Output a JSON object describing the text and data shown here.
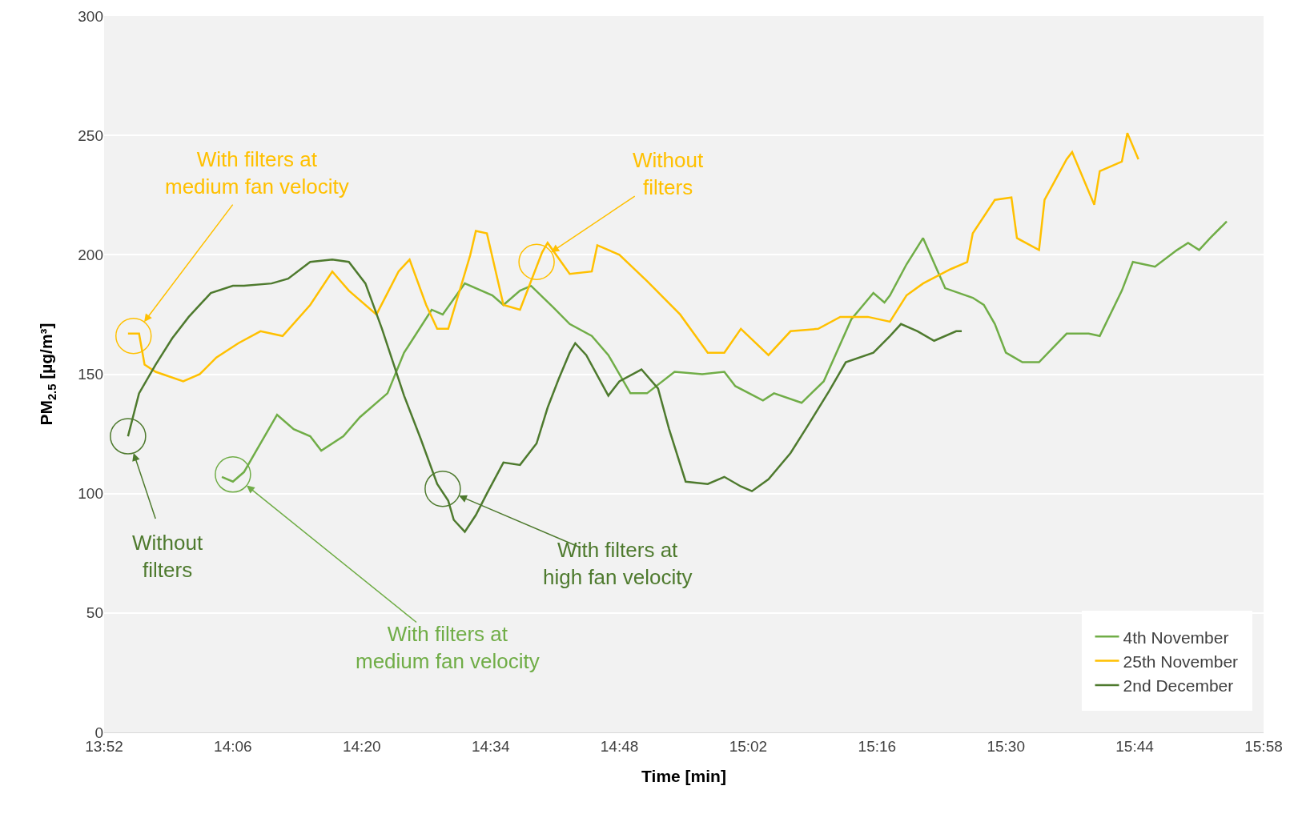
{
  "chart_data": {
    "type": "line",
    "xlabel": "Time [min]",
    "ylabel": "PM$_{2.5}$ [µg/m³]",
    "xlim": [
      13.8667,
      15.9667
    ],
    "xticks": [
      {
        "value": 13.8667,
        "label": "13:52"
      },
      {
        "value": 14.1,
        "label": "14:06"
      },
      {
        "value": 14.3333,
        "label": "14:20"
      },
      {
        "value": 14.5667,
        "label": "14:34"
      },
      {
        "value": 14.8,
        "label": "14:48"
      },
      {
        "value": 15.0333,
        "label": "15:02"
      },
      {
        "value": 15.2667,
        "label": "15:16"
      },
      {
        "value": 15.5,
        "label": "15:30"
      },
      {
        "value": 15.7333,
        "label": "15:44"
      },
      {
        "value": 15.9667,
        "label": "15:58"
      }
    ],
    "ylim": [
      0,
      300
    ],
    "yticks": [
      0,
      50,
      100,
      150,
      200,
      250,
      300
    ],
    "grid": "y",
    "legend": "bottom right",
    "marker": "none",
    "line_style": "solid",
    "series": [
      {
        "name": "4th November",
        "color": "#70ad47",
        "x": [
          14.08,
          14.1,
          14.12,
          14.14,
          14.18,
          14.21,
          14.24,
          14.26,
          14.3,
          14.33,
          14.38,
          14.41,
          14.46,
          14.48,
          14.52,
          14.57,
          14.59,
          14.62,
          14.64,
          14.68,
          14.71,
          14.75,
          14.78,
          14.82,
          14.85,
          14.9,
          14.95,
          14.99,
          15.01,
          15.06,
          15.08,
          15.13,
          15.17,
          15.22,
          15.26,
          15.28,
          15.29,
          15.32,
          15.35,
          15.39,
          15.44,
          15.46,
          15.48,
          15.5,
          15.53,
          15.56,
          15.61,
          15.65,
          15.67,
          15.71,
          15.73,
          15.77,
          15.81,
          15.83,
          15.85,
          15.87,
          15.9
        ],
        "values": [
          107,
          105,
          109,
          117,
          133,
          127,
          124,
          118,
          124,
          132,
          142,
          159,
          177,
          175,
          188,
          183,
          179,
          185,
          187,
          178,
          171,
          166,
          158,
          142,
          142,
          151,
          150,
          151,
          145,
          139,
          142,
          138,
          147,
          173,
          184,
          180,
          183,
          196,
          207,
          186,
          182,
          179,
          171,
          159,
          155,
          155,
          167,
          167,
          166,
          185,
          197,
          195,
          202,
          205,
          202,
          207,
          214
        ]
      },
      {
        "name": "25th November",
        "color": "#ffc000",
        "x": [
          13.91,
          13.93,
          13.94,
          13.96,
          14.01,
          14.04,
          14.07,
          14.11,
          14.15,
          14.19,
          14.24,
          14.28,
          14.31,
          14.36,
          14.4,
          14.42,
          14.45,
          14.47,
          14.49,
          14.53,
          14.54,
          14.56,
          14.59,
          14.62,
          14.66,
          14.67,
          14.71,
          14.75,
          14.76,
          14.8,
          14.85,
          14.91,
          14.96,
          14.99,
          15.02,
          15.07,
          15.11,
          15.16,
          15.2,
          15.25,
          15.29,
          15.32,
          15.35,
          15.4,
          15.43,
          15.44,
          15.48,
          15.51,
          15.52,
          15.56,
          15.57,
          15.61,
          15.62,
          15.66,
          15.67,
          15.71,
          15.72,
          15.74
        ],
        "values": [
          167,
          167,
          154,
          151,
          147,
          150,
          157,
          163,
          168,
          166,
          179,
          193,
          185,
          175,
          193,
          198,
          179,
          169,
          169,
          200,
          210,
          209,
          179,
          177,
          201,
          205,
          192,
          193,
          204,
          200,
          189,
          175,
          159,
          159,
          169,
          158,
          168,
          169,
          174,
          174,
          172,
          183,
          188,
          194,
          197,
          209,
          223,
          224,
          207,
          202,
          223,
          240,
          243,
          221,
          235,
          239,
          251,
          240
        ]
      },
      {
        "name": "2nd December",
        "color": "#4e7a2e",
        "x": [
          13.91,
          13.93,
          13.96,
          13.99,
          14.02,
          14.06,
          14.1,
          14.12,
          14.17,
          14.2,
          14.24,
          14.28,
          14.31,
          14.34,
          14.37,
          14.41,
          14.44,
          14.47,
          14.49,
          14.5,
          14.52,
          14.54,
          14.56,
          14.59,
          14.62,
          14.65,
          14.67,
          14.69,
          14.71,
          14.72,
          14.74,
          14.78,
          14.8,
          14.84,
          14.87,
          14.89,
          14.92,
          14.96,
          14.99,
          15.02,
          15.04,
          15.07,
          15.11,
          15.14,
          15.18,
          15.21,
          15.26,
          15.29,
          15.31,
          15.34,
          15.37,
          15.41,
          15.42
        ],
        "values": [
          124,
          142,
          154,
          165,
          174,
          184,
          187,
          187,
          188,
          190,
          197,
          198,
          197,
          188,
          169,
          141,
          123,
          104,
          97,
          89,
          84,
          91,
          100,
          113,
          112,
          121,
          136,
          148,
          159,
          163,
          158,
          141,
          147,
          152,
          144,
          127,
          105,
          104,
          107,
          103,
          101,
          106,
          117,
          128,
          143,
          155,
          159,
          166,
          171,
          168,
          164,
          168,
          168
        ]
      }
    ],
    "annotations": [
      {
        "text": "With filters at\nmedium fan velocity",
        "x": 13.92,
        "y": 166
      },
      {
        "text": "Without\nfilters",
        "x": 14.65,
        "y": 197
      },
      {
        "text": "Without\nfilters",
        "x": 13.91,
        "y": 124
      },
      {
        "text": "With filters at\nhigh fan velocity",
        "x": 14.48,
        "y": 102
      },
      {
        "text": "With filters at\nmedium fan velocity",
        "x": 14.1,
        "y": 108
      }
    ]
  }
}
